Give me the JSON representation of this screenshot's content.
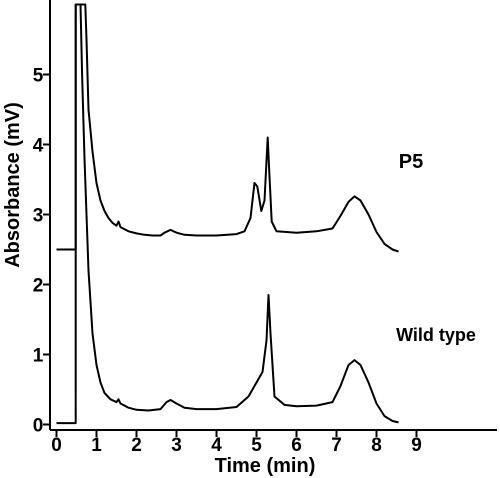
{
  "chart_data": {
    "type": "line",
    "xlabel": "Time (min)",
    "ylabel": "Absorbance (mV)",
    "xlim": [
      0,
      10
    ],
    "ylim": [
      -0.05,
      6
    ],
    "xticks": [
      "0",
      "1",
      "2",
      "3",
      "4",
      "5",
      "6",
      "7",
      "8",
      "9"
    ],
    "yticks": [
      "0",
      "1",
      "2",
      "3",
      "4",
      "5"
    ],
    "grid": false,
    "annotations": [
      "P5",
      "Wild type"
    ],
    "series": [
      {
        "name": "P5",
        "points": [
          [
            0.0,
            2.5
          ],
          [
            0.48,
            2.5
          ],
          [
            0.48,
            6.0
          ],
          [
            0.72,
            6.0
          ],
          [
            0.75,
            5.5
          ],
          [
            0.8,
            4.5
          ],
          [
            0.9,
            3.9
          ],
          [
            1.0,
            3.45
          ],
          [
            1.1,
            3.2
          ],
          [
            1.2,
            3.05
          ],
          [
            1.3,
            2.95
          ],
          [
            1.4,
            2.88
          ],
          [
            1.5,
            2.84
          ],
          [
            1.55,
            2.9
          ],
          [
            1.6,
            2.82
          ],
          [
            1.8,
            2.76
          ],
          [
            2.0,
            2.73
          ],
          [
            2.2,
            2.71
          ],
          [
            2.4,
            2.7
          ],
          [
            2.6,
            2.7
          ],
          [
            2.7,
            2.74
          ],
          [
            2.85,
            2.78
          ],
          [
            3.0,
            2.74
          ],
          [
            3.2,
            2.71
          ],
          [
            3.5,
            2.7
          ],
          [
            4.0,
            2.7
          ],
          [
            4.5,
            2.72
          ],
          [
            4.7,
            2.76
          ],
          [
            4.85,
            2.95
          ],
          [
            4.95,
            3.45
          ],
          [
            5.02,
            3.4
          ],
          [
            5.12,
            3.05
          ],
          [
            5.2,
            3.2
          ],
          [
            5.28,
            4.1
          ],
          [
            5.32,
            3.6
          ],
          [
            5.38,
            2.9
          ],
          [
            5.5,
            2.76
          ],
          [
            6.0,
            2.74
          ],
          [
            6.5,
            2.76
          ],
          [
            6.9,
            2.8
          ],
          [
            7.1,
            2.98
          ],
          [
            7.3,
            3.18
          ],
          [
            7.45,
            3.26
          ],
          [
            7.6,
            3.2
          ],
          [
            7.8,
            3.0
          ],
          [
            8.0,
            2.75
          ],
          [
            8.2,
            2.58
          ],
          [
            8.4,
            2.5
          ],
          [
            8.55,
            2.47
          ]
        ]
      },
      {
        "name": "Wild type",
        "points": [
          [
            0.0,
            0.02
          ],
          [
            0.48,
            0.02
          ],
          [
            0.48,
            6.0
          ],
          [
            0.6,
            6.0
          ],
          [
            0.64,
            5.0
          ],
          [
            0.7,
            3.8
          ],
          [
            0.8,
            2.2
          ],
          [
            0.9,
            1.3
          ],
          [
            1.0,
            0.85
          ],
          [
            1.1,
            0.6
          ],
          [
            1.2,
            0.45
          ],
          [
            1.35,
            0.36
          ],
          [
            1.5,
            0.32
          ],
          [
            1.55,
            0.36
          ],
          [
            1.6,
            0.3
          ],
          [
            1.8,
            0.24
          ],
          [
            2.0,
            0.21
          ],
          [
            2.3,
            0.2
          ],
          [
            2.6,
            0.22
          ],
          [
            2.75,
            0.32
          ],
          [
            2.85,
            0.35
          ],
          [
            3.0,
            0.3
          ],
          [
            3.2,
            0.24
          ],
          [
            3.5,
            0.22
          ],
          [
            4.0,
            0.22
          ],
          [
            4.5,
            0.25
          ],
          [
            4.8,
            0.4
          ],
          [
            5.0,
            0.6
          ],
          [
            5.15,
            0.75
          ],
          [
            5.25,
            1.2
          ],
          [
            5.3,
            1.85
          ],
          [
            5.35,
            1.3
          ],
          [
            5.45,
            0.4
          ],
          [
            5.7,
            0.28
          ],
          [
            6.0,
            0.26
          ],
          [
            6.5,
            0.27
          ],
          [
            6.9,
            0.32
          ],
          [
            7.1,
            0.55
          ],
          [
            7.3,
            0.85
          ],
          [
            7.45,
            0.92
          ],
          [
            7.6,
            0.85
          ],
          [
            7.8,
            0.6
          ],
          [
            8.0,
            0.3
          ],
          [
            8.2,
            0.12
          ],
          [
            8.4,
            0.05
          ],
          [
            8.55,
            0.03
          ]
        ]
      }
    ]
  }
}
